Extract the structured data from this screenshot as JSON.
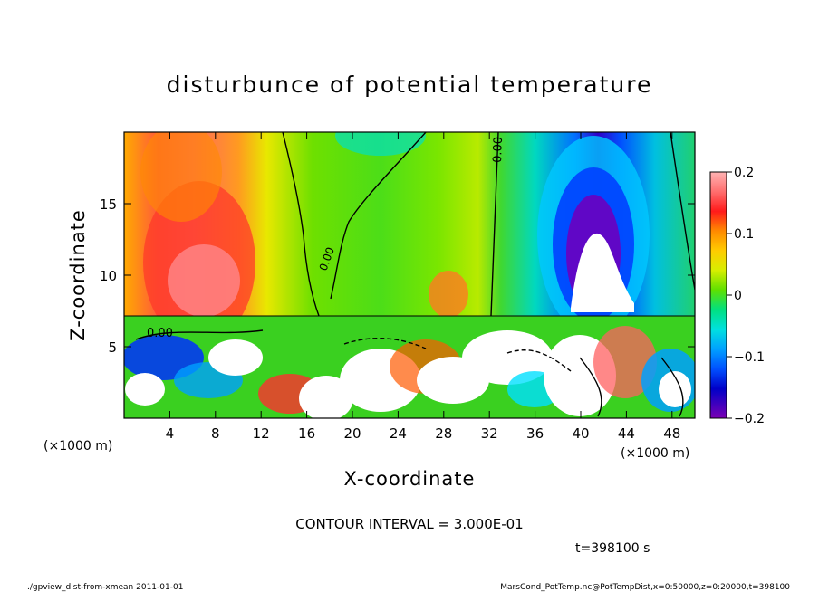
{
  "chart_data": {
    "type": "heatmap",
    "title": "disturbunce of potential temperature",
    "xlabel": "X-coordinate",
    "ylabel": "Z-coordinate",
    "x_unit": "(×1000 m)",
    "y_unit": "(×1000 m)",
    "xlim": [
      0,
      50
    ],
    "ylim": [
      0,
      20
    ],
    "x_ticks": [
      4,
      8,
      12,
      16,
      20,
      24,
      28,
      32,
      36,
      40,
      44,
      48
    ],
    "y_ticks": [
      5,
      10,
      15
    ],
    "colorbar": {
      "range": [
        -0.2,
        0.2
      ],
      "tick_values": [
        0.2,
        0.1,
        0,
        -0.1,
        -0.2
      ],
      "tick_labels": [
        "0.2",
        "0.1",
        "0",
        "−0.1",
        "−0.2"
      ]
    },
    "contour_labels": [
      "0.00",
      "0.00",
      "0.00"
    ],
    "contour_interval_text": "CONTOUR INTERVAL = 3.000E-01",
    "time_text": "t=398100 s",
    "footer_left": "./gpview_dist-from-xmean   2011-01-01",
    "footer_right": "MarsCond_PotTemp.nc@PotTempDist,x=0:50000,z=0:20000,t=398100"
  }
}
